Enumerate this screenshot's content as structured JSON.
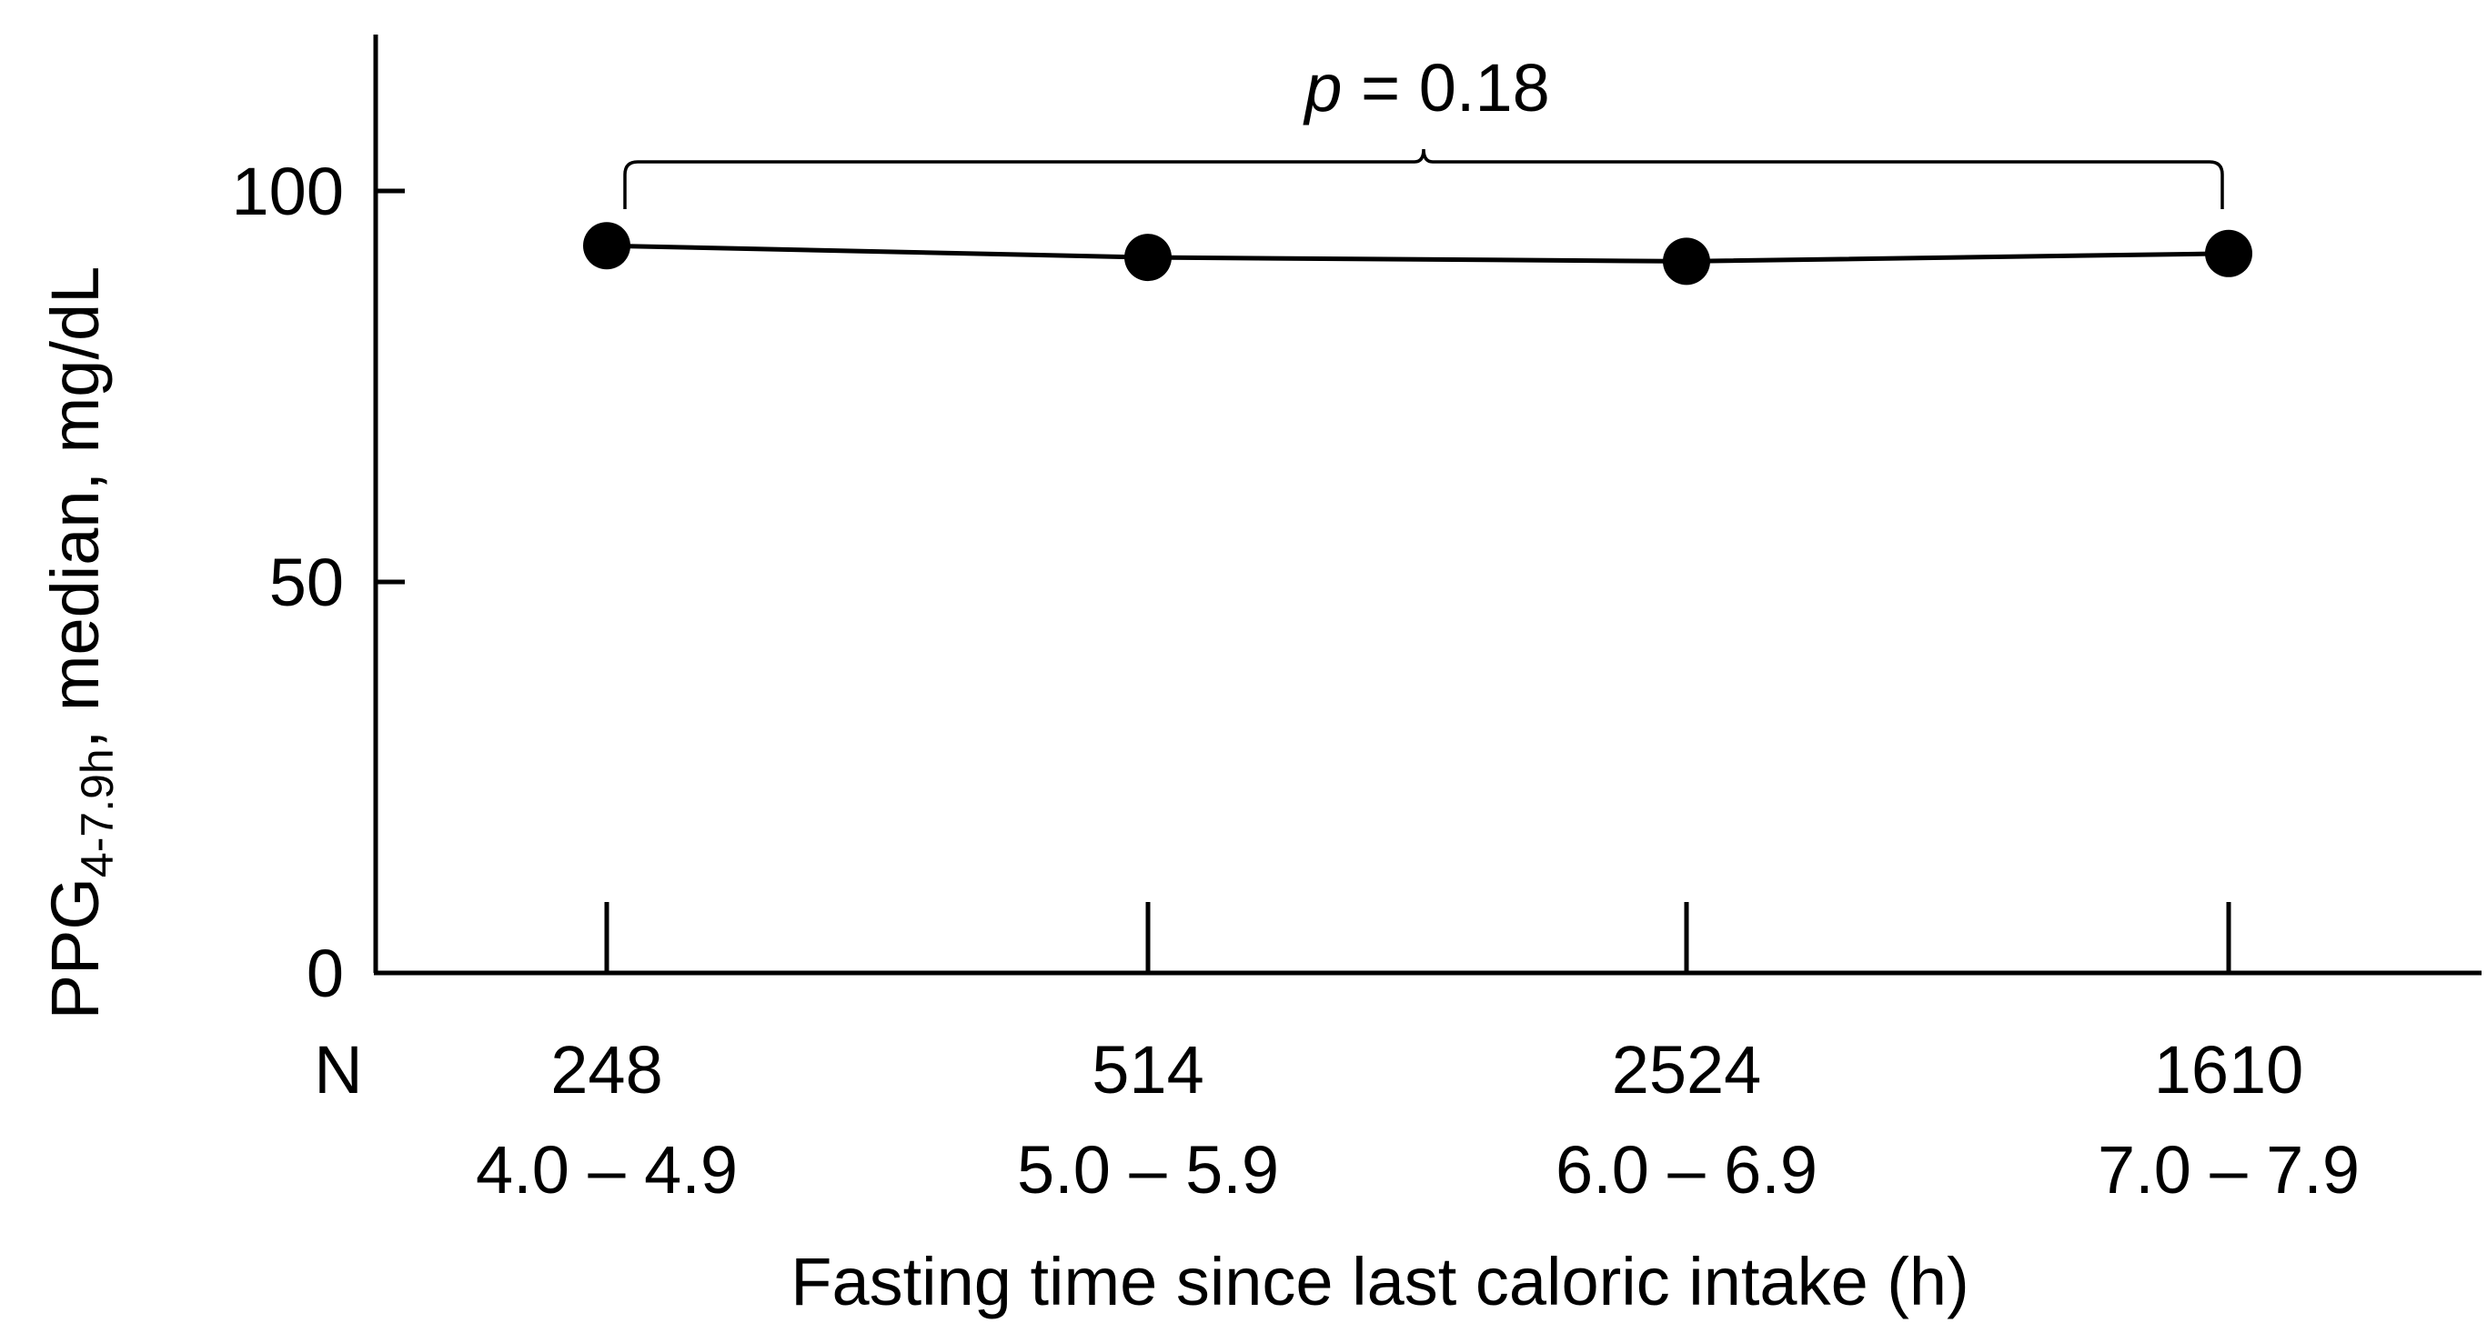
{
  "chart_data": {
    "type": "line",
    "title": "",
    "categories": [
      "4.0 – 4.9",
      "5.0 – 5.9",
      "6.0 – 6.9",
      "7.0 – 7.9"
    ],
    "n_label": "N",
    "n_values": [
      "248",
      "514",
      "2524",
      "1610"
    ],
    "series": [
      {
        "name": "PPG 4-7.9h median",
        "values": [
          93,
          91.5,
          91,
          92
        ]
      }
    ],
    "ylim": [
      0,
      120
    ],
    "yticks": [
      0,
      50,
      100
    ],
    "ylabel": {
      "main": "PPG",
      "subscript": "4-7.9h",
      "rest": ", median, mg/dL"
    },
    "xlabel": "Fasting time since last caloric intake (h)",
    "annotation": {
      "p_symbol": "p",
      "p_text": " = 0.18",
      "spans": [
        "4.0 – 4.9",
        "7.0 – 7.9"
      ]
    },
    "grid": false,
    "legend": "none"
  }
}
